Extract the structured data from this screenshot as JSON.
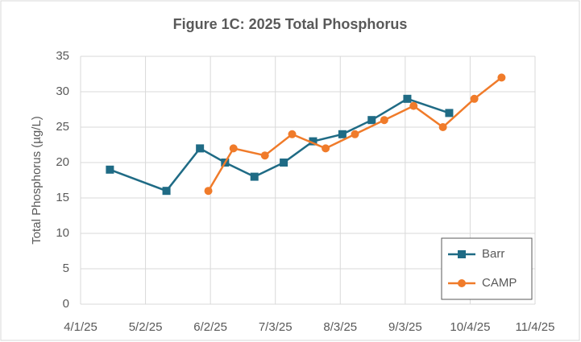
{
  "chart_data": {
    "type": "line",
    "title": "Figure 1C: 2025 Total Phosphorus",
    "y_label": "Total Phosphorus (µg/L)",
    "xlim": [
      "4/1/25",
      "11/4/25"
    ],
    "xticks": [
      "4/1/25",
      "5/2/25",
      "6/2/25",
      "7/3/25",
      "8/3/25",
      "9/3/25",
      "10/4/25",
      "11/4/25"
    ],
    "ylim": [
      0,
      35
    ],
    "yticks": [
      0,
      5,
      10,
      15,
      20,
      25,
      30,
      35
    ],
    "grid": true,
    "legend": "lower right",
    "series": [
      {
        "name": "Barr",
        "color": "#1f6b85",
        "marker": "square",
        "x": [
          "4/15/25",
          "5/12/25",
          "5/28/25",
          "6/9/25",
          "6/23/25",
          "7/7/25",
          "7/21/25",
          "8/4/25",
          "8/18/25",
          "9/4/25",
          "9/24/25"
        ],
        "values": [
          19,
          16,
          22,
          20,
          18,
          20,
          23,
          24,
          26,
          29,
          27
        ]
      },
      {
        "name": "CAMP",
        "color": "#f07b2a",
        "marker": "circle",
        "x": [
          "6/1/25",
          "6/13/25",
          "6/28/25",
          "7/11/25",
          "7/27/25",
          "8/10/25",
          "8/24/25",
          "9/7/25",
          "9/21/25",
          "10/6/25",
          "10/19/25"
        ],
        "values": [
          16,
          22,
          21,
          24,
          22,
          24,
          26,
          28,
          25,
          29,
          32
        ]
      }
    ]
  }
}
